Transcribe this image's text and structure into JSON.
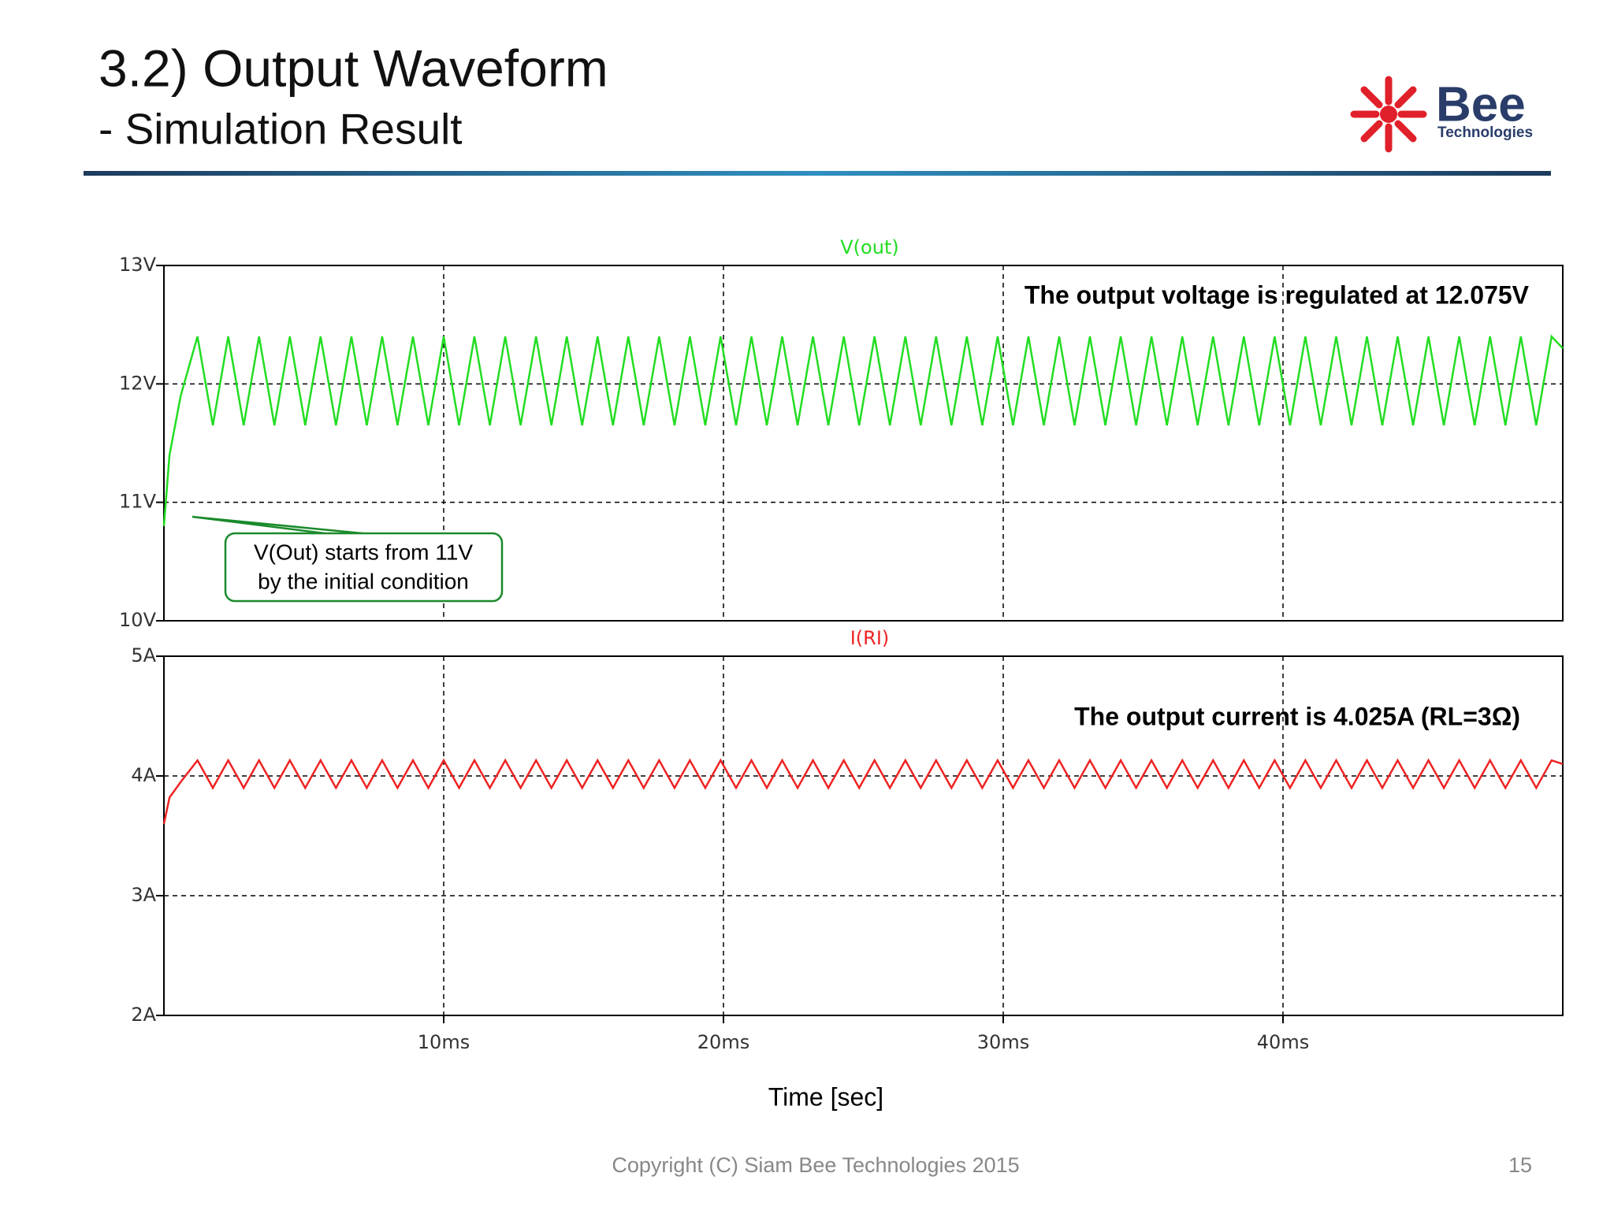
{
  "header": {
    "title": "3.2) Output Waveform",
    "subtitle": "- Simulation Result"
  },
  "logo": {
    "name": "Bee",
    "sub": "Technologies"
  },
  "chart_data": [
    {
      "type": "line",
      "title": "V(out)",
      "color": "#22dd22",
      "grid": true,
      "xlim": [
        0,
        50
      ],
      "xticks": [
        10,
        20,
        30,
        40
      ],
      "ylim": [
        10,
        13
      ],
      "yticks": [
        {
          "value": 10,
          "label": "10V"
        },
        {
          "value": 11,
          "label": "11V"
        },
        {
          "value": 12,
          "label": "12V"
        },
        {
          "value": 13,
          "label": "13V"
        }
      ],
      "x": [
        0,
        0.2,
        0.6,
        1.2,
        1.75,
        2.3,
        2.85,
        3.4,
        3.95,
        4.5,
        5.05,
        5.6,
        6.15,
        6.7,
        7.25,
        7.8,
        8.35,
        8.9,
        9.45,
        10,
        10.55,
        11.1,
        11.65,
        12.2,
        12.75,
        13.3,
        13.85,
        14.4,
        14.95,
        15.5,
        16.05,
        16.6,
        17.15,
        17.7,
        18.25,
        18.8,
        19.35,
        19.9,
        20.45,
        21,
        21.55,
        22.1,
        22.65,
        23.2,
        23.75,
        24.3,
        24.85,
        25.4,
        25.95,
        26.5,
        27.05,
        27.6,
        28.15,
        28.7,
        29.25,
        29.8,
        30.35,
        30.9,
        31.45,
        32,
        32.55,
        33.1,
        33.65,
        34.2,
        34.75,
        35.3,
        35.85,
        36.4,
        36.95,
        37.5,
        38.05,
        38.6,
        39.15,
        39.7,
        40.25,
        40.8,
        41.35,
        41.9,
        42.45,
        43,
        43.55,
        44.1,
        44.65,
        45.2,
        45.75,
        46.3,
        46.85,
        47.4,
        47.95,
        48.5,
        49.05,
        49.6,
        50
      ],
      "values": [
        10.8,
        11.4,
        11.9,
        12.4,
        11.65,
        12.4,
        11.65,
        12.4,
        11.65,
        12.4,
        11.65,
        12.4,
        11.65,
        12.4,
        11.65,
        12.4,
        11.65,
        12.4,
        11.65,
        12.4,
        11.65,
        12.4,
        11.65,
        12.4,
        11.65,
        12.4,
        11.65,
        12.4,
        11.65,
        12.4,
        11.65,
        12.4,
        11.65,
        12.4,
        11.65,
        12.4,
        11.65,
        12.4,
        11.65,
        12.4,
        11.65,
        12.4,
        11.65,
        12.4,
        11.65,
        12.4,
        11.65,
        12.4,
        11.65,
        12.4,
        11.65,
        12.4,
        11.65,
        12.4,
        11.65,
        12.4,
        11.65,
        12.4,
        11.65,
        12.4,
        11.65,
        12.4,
        11.65,
        12.4,
        11.65,
        12.4,
        11.65,
        12.4,
        11.65,
        12.4,
        11.65,
        12.4,
        11.65,
        12.4,
        11.65,
        12.4,
        11.65,
        12.4,
        11.65,
        12.4,
        11.65,
        12.4,
        11.65,
        12.4,
        11.65,
        12.4,
        11.65,
        12.4,
        11.65,
        12.4,
        11.65,
        12.4,
        12.3
      ],
      "annotations": [
        "The output voltage is regulated at 12.075V"
      ],
      "callout": [
        "V(Out) starts from 11V",
        "by the initial condition"
      ]
    },
    {
      "type": "line",
      "title": "I(RI)",
      "color": "#ee2222",
      "grid": true,
      "xlim": [
        0,
        50
      ],
      "xticks": [
        {
          "value": 10,
          "label": "10ms"
        },
        {
          "value": 20,
          "label": "20ms"
        },
        {
          "value": 30,
          "label": "30ms"
        },
        {
          "value": 40,
          "label": "40ms"
        }
      ],
      "ylim": [
        2,
        5
      ],
      "yticks": [
        {
          "value": 2,
          "label": "2A"
        },
        {
          "value": 3,
          "label": "3A"
        },
        {
          "value": 4,
          "label": "4A"
        },
        {
          "value": 5,
          "label": "5A"
        }
      ],
      "xlabel": "Time [sec]",
      "x": [
        0,
        0.2,
        0.6,
        1.2,
        1.75,
        2.3,
        2.85,
        3.4,
        3.95,
        4.5,
        5.05,
        5.6,
        6.15,
        6.7,
        7.25,
        7.8,
        8.35,
        8.9,
        9.45,
        10,
        10.55,
        11.1,
        11.65,
        12.2,
        12.75,
        13.3,
        13.85,
        14.4,
        14.95,
        15.5,
        16.05,
        16.6,
        17.15,
        17.7,
        18.25,
        18.8,
        19.35,
        19.9,
        20.45,
        21,
        21.55,
        22.1,
        22.65,
        23.2,
        23.75,
        24.3,
        24.85,
        25.4,
        25.95,
        26.5,
        27.05,
        27.6,
        28.15,
        28.7,
        29.25,
        29.8,
        30.35,
        30.9,
        31.45,
        32,
        32.55,
        33.1,
        33.65,
        34.2,
        34.75,
        35.3,
        35.85,
        36.4,
        36.95,
        37.5,
        38.05,
        38.6,
        39.15,
        39.7,
        40.25,
        40.8,
        41.35,
        41.9,
        42.45,
        43,
        43.55,
        44.1,
        44.65,
        45.2,
        45.75,
        46.3,
        46.85,
        47.4,
        47.95,
        48.5,
        49.05,
        49.6,
        50
      ],
      "values": [
        3.6,
        3.82,
        3.95,
        4.13,
        3.9,
        4.13,
        3.9,
        4.13,
        3.9,
        4.13,
        3.9,
        4.13,
        3.9,
        4.13,
        3.9,
        4.13,
        3.9,
        4.13,
        3.9,
        4.13,
        3.9,
        4.13,
        3.9,
        4.13,
        3.9,
        4.13,
        3.9,
        4.13,
        3.9,
        4.13,
        3.9,
        4.13,
        3.9,
        4.13,
        3.9,
        4.13,
        3.9,
        4.13,
        3.9,
        4.13,
        3.9,
        4.13,
        3.9,
        4.13,
        3.9,
        4.13,
        3.9,
        4.13,
        3.9,
        4.13,
        3.9,
        4.13,
        3.9,
        4.13,
        3.9,
        4.13,
        3.9,
        4.13,
        3.9,
        4.13,
        3.9,
        4.13,
        3.9,
        4.13,
        3.9,
        4.13,
        3.9,
        4.13,
        3.9,
        4.13,
        3.9,
        4.13,
        3.9,
        4.13,
        3.9,
        4.13,
        3.9,
        4.13,
        3.9,
        4.13,
        3.9,
        4.13,
        3.9,
        4.13,
        3.9,
        4.13,
        3.9,
        4.13,
        3.9,
        4.13,
        3.9,
        4.13,
        4.1
      ],
      "annotations": [
        "The output current is 4.025A (RL=3Ω)"
      ]
    }
  ],
  "footer": {
    "copyright": "Copyright (C) Siam Bee Technologies 2015",
    "page": 15
  }
}
